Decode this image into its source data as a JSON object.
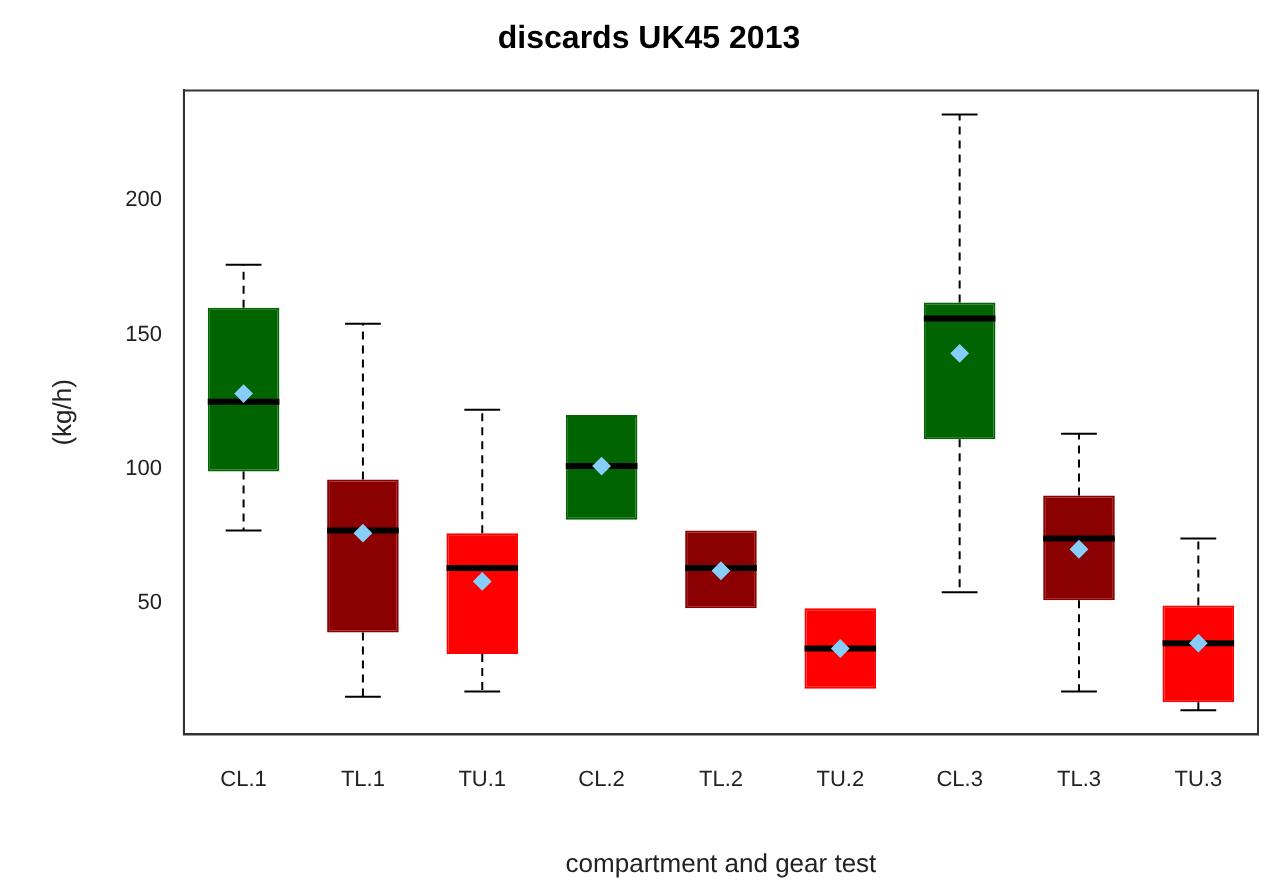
{
  "chart_data": {
    "type": "box",
    "title": "discards UK45 2013",
    "xlabel": "compartment and gear test",
    "ylabel": "(kg/h)",
    "categories": [
      "CL.1",
      "TL.1",
      "TU.1",
      "CL.2",
      "TL.2",
      "TU.2",
      "CL.3",
      "TL.3",
      "TU.3"
    ],
    "colors": [
      "#006400",
      "#8b0000",
      "#ff0000",
      "#006400",
      "#8b0000",
      "#ff0000",
      "#006400",
      "#8b0000",
      "#ff0000"
    ],
    "boxes": [
      {
        "low": 77,
        "q1": 99,
        "median": 125,
        "q3": 160,
        "high": 176
      },
      {
        "low": 15,
        "q1": 39,
        "median": 77,
        "q3": 96,
        "high": 154
      },
      {
        "low": 17,
        "q1": 31,
        "median": 63,
        "q3": 76,
        "high": 122
      },
      {
        "low": 81,
        "q1": 81,
        "median": 101,
        "q3": 120,
        "high": 120
      },
      {
        "low": 48,
        "q1": 48,
        "median": 63,
        "q3": 77,
        "high": 77
      },
      {
        "low": 18,
        "q1": 18,
        "median": 33,
        "q3": 48,
        "high": 48
      },
      {
        "low": 54,
        "q1": 111,
        "median": 156,
        "q3": 162,
        "high": 232
      },
      {
        "low": 17,
        "q1": 51,
        "median": 74,
        "q3": 90,
        "high": 113
      },
      {
        "low": 10,
        "q1": 13,
        "median": 35,
        "q3": 49,
        "high": 74
      }
    ],
    "series": [
      {
        "type": "scatter",
        "color": "#87cefa",
        "x": [
          "CL.1",
          "TL.1",
          "TU.1",
          "CL.2",
          "TL.2",
          "TU.2",
          "CL.3",
          "TL.3",
          "TU.3"
        ],
        "values": [
          128,
          76,
          58,
          101,
          62,
          33,
          143,
          70,
          35
        ]
      }
    ],
    "marker": "diamond",
    "ylim": [
      1,
      241
    ],
    "yticks": [
      50,
      100,
      150,
      200
    ],
    "grid": false,
    "legend": false
  }
}
